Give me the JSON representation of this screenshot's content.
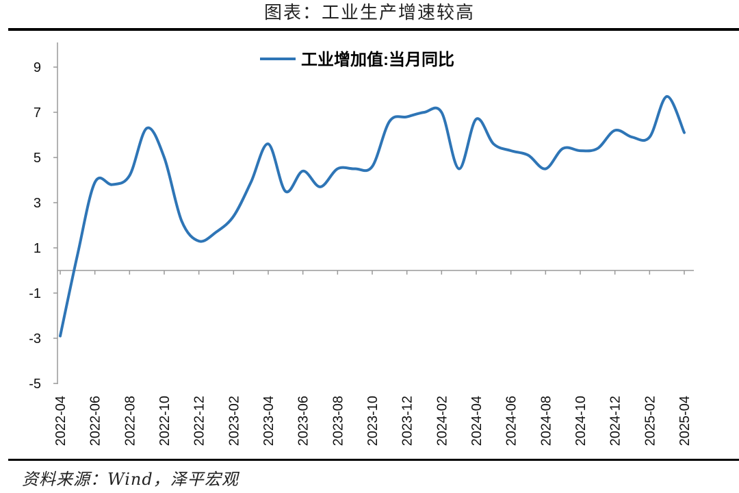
{
  "figure": {
    "title": "图表：工业生产增速较高",
    "source": "资料来源：Wind，泽平宏观"
  },
  "chart_data": {
    "type": "line",
    "series": [
      {
        "name": "工业增加值:当月同比",
        "color": "#2E75B6",
        "x": [
          "2022-04",
          "2022-05",
          "2022-06",
          "2022-07",
          "2022-08",
          "2022-09",
          "2022-10",
          "2022-11",
          "2022-12",
          "2023-01",
          "2023-02",
          "2023-03",
          "2023-04",
          "2023-05",
          "2023-06",
          "2023-07",
          "2023-08",
          "2023-09",
          "2023-10",
          "2023-11",
          "2023-12",
          "2024-01",
          "2024-02",
          "2024-03",
          "2024-04",
          "2024-05",
          "2024-06",
          "2024-07",
          "2024-08",
          "2024-09",
          "2024-10",
          "2024-11",
          "2024-12",
          "2025-01",
          "2025-02",
          "2025-03",
          "2025-04"
        ],
        "values": [
          -2.9,
          0.7,
          3.9,
          3.8,
          4.2,
          6.3,
          5.0,
          2.2,
          1.3,
          1.7,
          2.4,
          3.9,
          5.6,
          3.5,
          4.4,
          3.7,
          4.5,
          4.5,
          4.6,
          6.6,
          6.8,
          7.0,
          7.0,
          4.5,
          6.7,
          5.6,
          5.3,
          5.1,
          4.5,
          5.4,
          5.3,
          5.4,
          6.2,
          5.9,
          5.9,
          7.7,
          6.1
        ]
      }
    ],
    "x_tick_labels": [
      "2022-04",
      "2022-06",
      "2022-08",
      "2022-10",
      "2022-12",
      "2023-02",
      "2023-04",
      "2023-06",
      "2023-08",
      "2023-10",
      "2023-12",
      "2024-02",
      "2024-04",
      "2024-06",
      "2024-08",
      "2024-10",
      "2024-12",
      "2025-02",
      "2025-04"
    ],
    "y_ticks": [
      "9",
      "7",
      "5",
      "3",
      "1",
      "-1",
      "-3",
      "-5"
    ],
    "ylim": [
      -5,
      10
    ],
    "legend_position": "top-center",
    "grid": false
  }
}
